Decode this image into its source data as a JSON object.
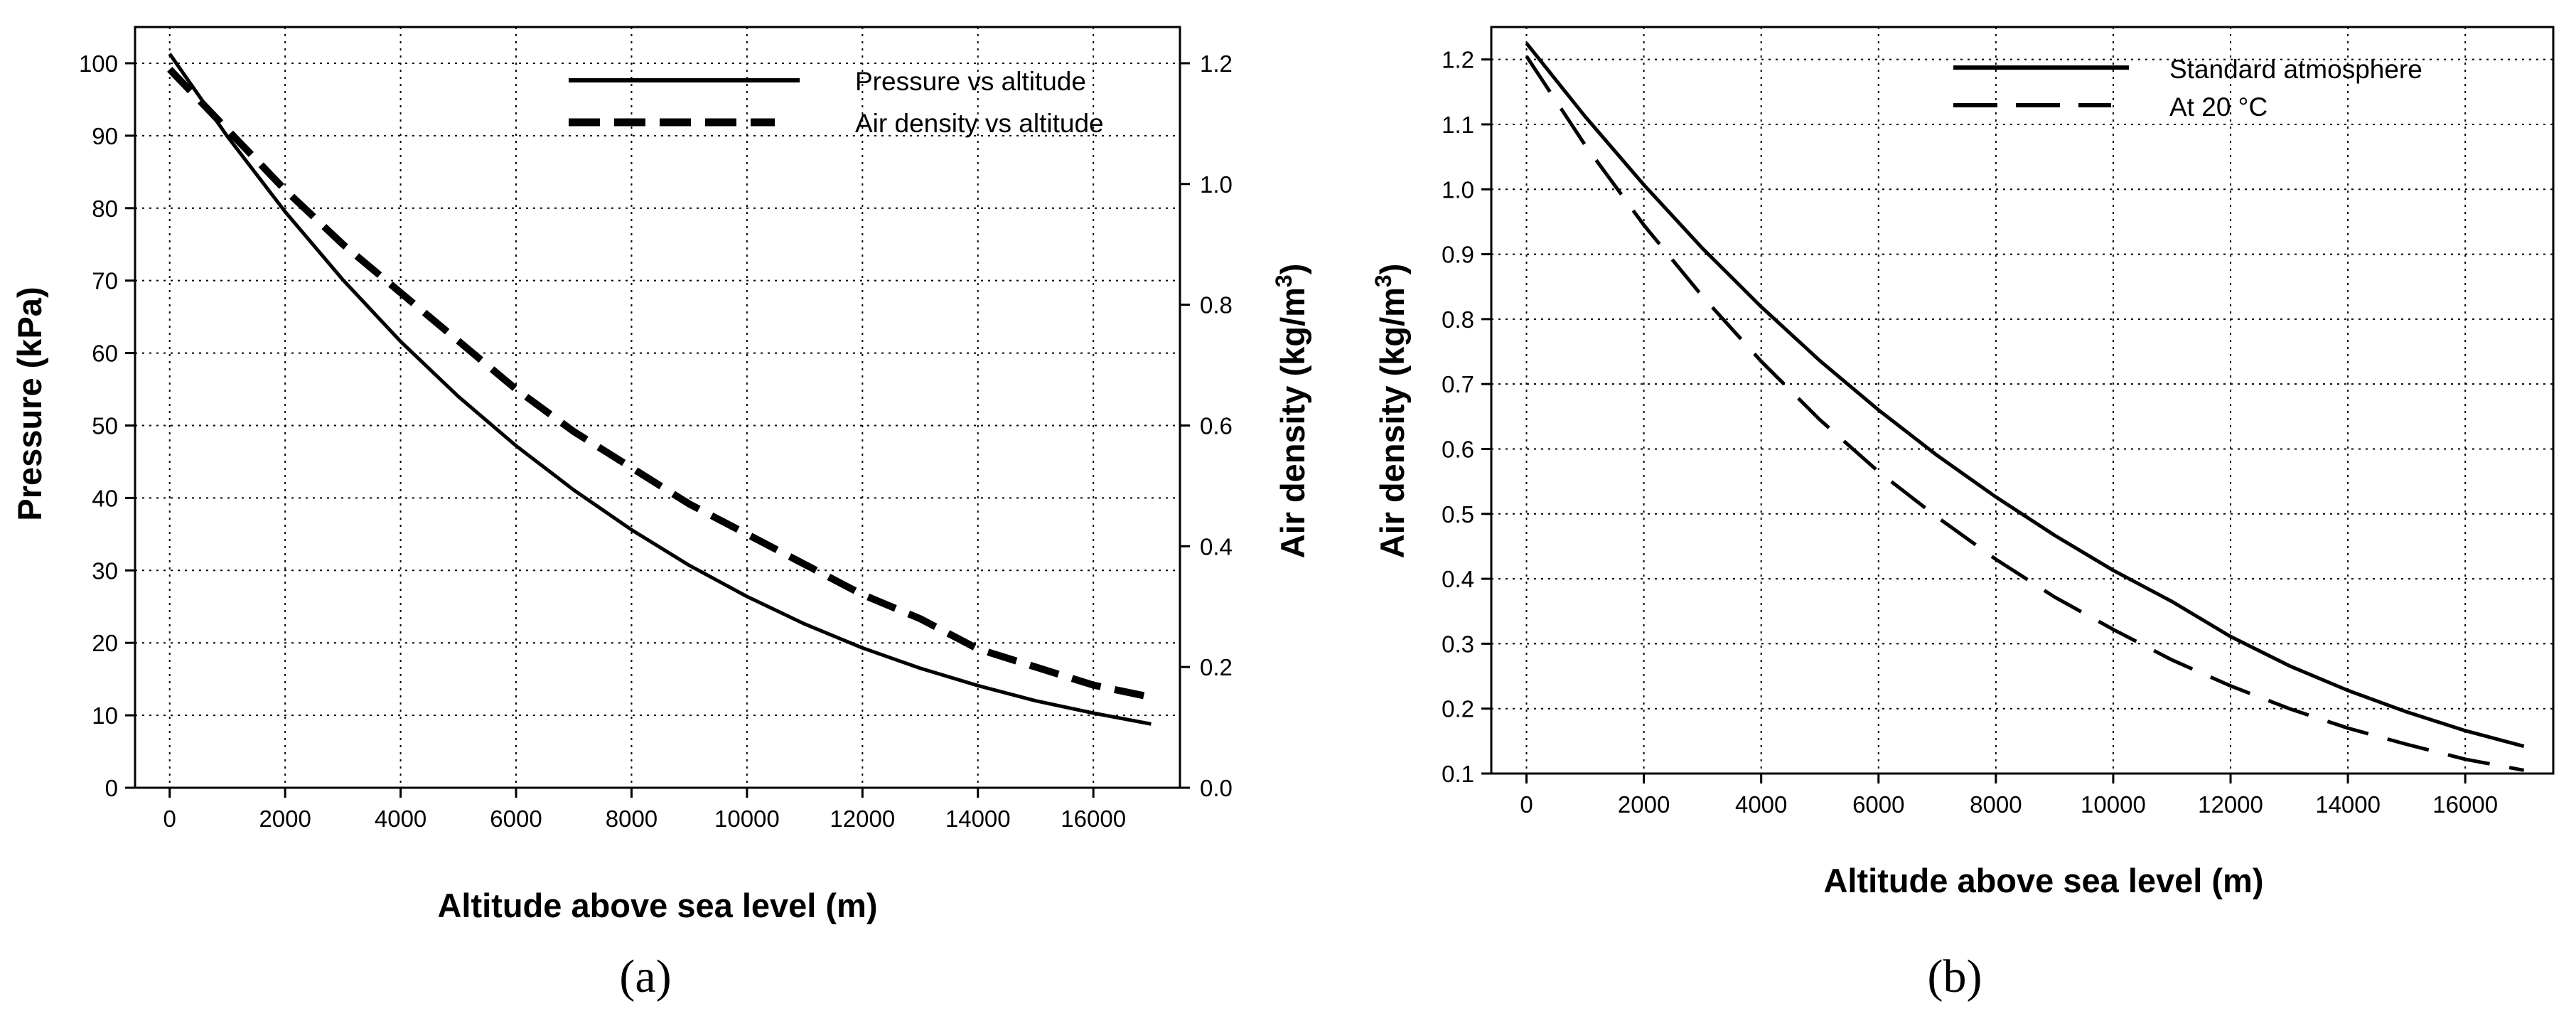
{
  "chart_data": [
    {
      "type": "line",
      "panel_label": "(a)",
      "xlabel": "Altitude above sea level (m)",
      "ylabel": "Pressure (kPa)",
      "y2label_prefix": "Air density (kg/m",
      "y2label_sup": "3",
      "y2label_suffix": ")",
      "xlim": [
        -600,
        17500
      ],
      "ylim": [
        0,
        105
      ],
      "y2lim": [
        0,
        1.26
      ],
      "xticks": [
        0,
        2000,
        4000,
        6000,
        8000,
        10000,
        12000,
        14000,
        16000
      ],
      "yticks": [
        0,
        10,
        20,
        30,
        40,
        50,
        60,
        70,
        80,
        90,
        100
      ],
      "y2ticks": [
        "0.0",
        "0.2",
        "0.4",
        "0.6",
        "0.8",
        "1.0",
        "1.2"
      ],
      "grid": true,
      "legend_position": "top-right",
      "series": [
        {
          "name": "Pressure vs altitude",
          "style": "solid",
          "axis": "left",
          "x": [
            0,
            1000,
            2000,
            3000,
            4000,
            5000,
            6000,
            7000,
            8000,
            9000,
            10000,
            11000,
            12000,
            13000,
            14000,
            15000,
            16000,
            17000
          ],
          "y": [
            101.3,
            89.9,
            79.5,
            70.1,
            61.6,
            54.0,
            47.2,
            41.1,
            35.6,
            30.7,
            26.4,
            22.6,
            19.3,
            16.5,
            14.1,
            12.0,
            10.3,
            8.8
          ]
        },
        {
          "name": "Air density vs altitude",
          "style": "dashed",
          "axis": "right",
          "x": [
            0,
            1000,
            2000,
            3000,
            4000,
            5000,
            6000,
            7000,
            8000,
            9000,
            10000,
            11000,
            12000,
            13000,
            14000,
            15000,
            16000,
            17000
          ],
          "y": [
            1.19,
            1.09,
            0.99,
            0.9,
            0.82,
            0.74,
            0.66,
            0.59,
            0.53,
            0.47,
            0.42,
            0.37,
            0.32,
            0.28,
            0.23,
            0.2,
            0.17,
            0.15
          ]
        }
      ]
    },
    {
      "type": "line",
      "panel_label": "(b)",
      "xlabel": "Altitude above sea level (m)",
      "ylabel_prefix": "Air density (kg/m",
      "ylabel_sup": "3",
      "ylabel_suffix": ")",
      "xlim": [
        -600,
        17500
      ],
      "ylim": [
        0.1,
        1.25
      ],
      "xticks": [
        0,
        2000,
        4000,
        6000,
        8000,
        10000,
        12000,
        14000,
        16000
      ],
      "yticks": [
        "0.1",
        "0.2",
        "0.3",
        "0.4",
        "0.5",
        "0.6",
        "0.7",
        "0.8",
        "0.9",
        "1.0",
        "1.1",
        "1.2"
      ],
      "grid": true,
      "legend_position": "top-right",
      "series": [
        {
          "name": "Standard atmosphere",
          "style": "solid",
          "x": [
            0,
            1000,
            2000,
            3000,
            4000,
            5000,
            6000,
            7000,
            8000,
            9000,
            10000,
            11000,
            12000,
            13000,
            14000,
            15000,
            16000,
            17000
          ],
          "y": [
            1.225,
            1.112,
            1.007,
            0.909,
            0.819,
            0.736,
            0.66,
            0.59,
            0.526,
            0.467,
            0.413,
            0.365,
            0.311,
            0.266,
            0.228,
            0.195,
            0.166,
            0.142
          ]
        },
        {
          "name": "At 20 °C",
          "style": "longdash",
          "x": [
            0,
            1000,
            2000,
            3000,
            4000,
            5000,
            6000,
            7000,
            8000,
            9000,
            10000,
            11000,
            12000,
            13000,
            14000,
            15000,
            16000,
            17000
          ],
          "y": [
            1.205,
            1.068,
            0.945,
            0.835,
            0.735,
            0.645,
            0.565,
            0.495,
            0.43,
            0.372,
            0.322,
            0.275,
            0.235,
            0.2,
            0.17,
            0.145,
            0.122,
            0.105
          ]
        }
      ]
    }
  ]
}
